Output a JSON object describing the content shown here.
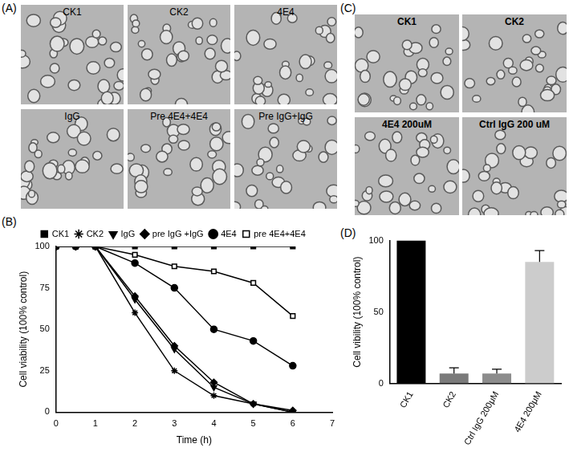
{
  "image_panels": [
    {
      "label": "(A)",
      "captions": [
        "CK1",
        "CK2",
        "4E4",
        "IgG",
        "Pre  4E4+4E4",
        "Pre IgG+IgG"
      ]
    },
    {
      "label": "(C)",
      "captions": [
        "CK1",
        "CK2",
        "4E4 200uM",
        "Ctrl IgG 200 uM"
      ]
    }
  ],
  "chart_data": [
    {
      "type": "line",
      "annotations": [
        "(B)"
      ],
      "x": [
        0,
        0.5,
        1,
        2,
        3,
        4,
        5,
        6
      ],
      "series": [
        {
          "name": "CK1",
          "color": "#000000",
          "marker": "square",
          "values": [
            100,
            100,
            100,
            100,
            100,
            100,
            100,
            100
          ]
        },
        {
          "name": "CK2",
          "color": "#000000",
          "marker": "star",
          "values": [
            100,
            100,
            100,
            60,
            25,
            10,
            5,
            0
          ]
        },
        {
          "name": "IgG",
          "color": "#000000",
          "marker": "triangle-down",
          "values": [
            100,
            100,
            100,
            68,
            38,
            15,
            5,
            0
          ]
        },
        {
          "name": "pre IgG +IgG",
          "color": "#000000",
          "marker": "diamond",
          "values": [
            100,
            100,
            100,
            70,
            40,
            18,
            5,
            1
          ]
        },
        {
          "name": "4E4",
          "color": "#000000",
          "marker": "circle",
          "values": [
            100,
            100,
            100,
            90,
            75,
            50,
            43,
            28
          ]
        },
        {
          "name": "pre 4E4+4E4",
          "color": "#000000",
          "marker": "square-open",
          "values": [
            100,
            100,
            100,
            95,
            88,
            85,
            78,
            58
          ]
        }
      ],
      "xlabel": "Time (h)",
      "ylabel": "Cell viability (100% control)",
      "xlim": [
        0,
        7
      ],
      "xticks": [
        0,
        1,
        2,
        3,
        4,
        5,
        6,
        7
      ],
      "ylim": [
        0,
        100
      ],
      "yticks": [
        0,
        25,
        50,
        75,
        100
      ],
      "grid": false,
      "legend": "top"
    },
    {
      "type": "bar",
      "annotations": [
        "(D)"
      ],
      "categories": [
        "CK1",
        "CK2",
        "Ctrl IgG 200μM",
        "4E4 200μM"
      ],
      "values": [
        100,
        7,
        7,
        85
      ],
      "errors": [
        0,
        4,
        3,
        8
      ],
      "colors": [
        "#000000",
        "#7a7a7a",
        "#8c8c8c",
        "#cccccc"
      ],
      "ylabel": "Cell vibility (100% control)",
      "ylim": [
        0,
        100
      ],
      "yticks": [
        0,
        50,
        100
      ],
      "grid": false
    }
  ]
}
